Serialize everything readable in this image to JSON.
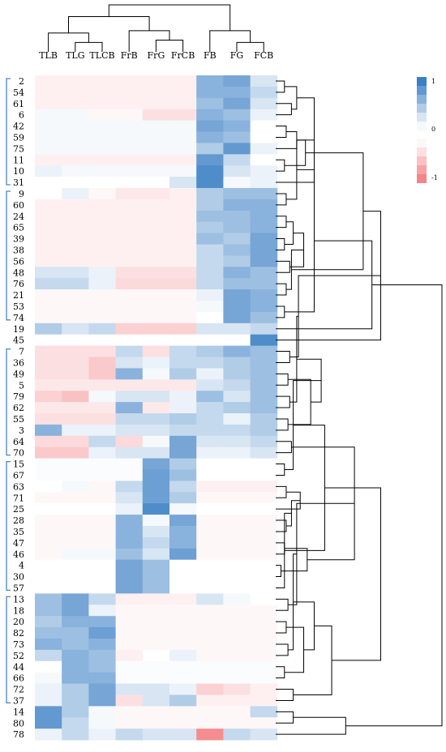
{
  "chart_data": {
    "type": "heatmap",
    "title": "",
    "columns": [
      "TLB",
      "TLG",
      "TLCB",
      "FrB",
      "FrG",
      "FrCB",
      "FB",
      "FG",
      "FCB"
    ],
    "rows": [
      "2",
      "54",
      "61",
      "6",
      "42",
      "59",
      "75",
      "11",
      "10",
      "31",
      "9",
      "60",
      "24",
      "65",
      "39",
      "38",
      "56",
      "48",
      "76",
      "21",
      "53",
      "74",
      "19",
      "45",
      "7",
      "36",
      "49",
      "5",
      "79",
      "62",
      "55",
      "3",
      "64",
      "70",
      "15",
      "67",
      "63",
      "71",
      "25",
      "28",
      "35",
      "47",
      "46",
      "4",
      "30",
      "57",
      "13",
      "18",
      "20",
      "82",
      "73",
      "52",
      "44",
      "66",
      "72",
      "37",
      "14",
      "80",
      "78"
    ],
    "values": [
      [
        -0.1,
        -0.1,
        -0.1,
        -0.1,
        -0.1,
        -0.1,
        0.6,
        0.7,
        0.2
      ],
      [
        -0.1,
        -0.1,
        -0.1,
        -0.1,
        -0.1,
        -0.1,
        0.6,
        0.6,
        0.3
      ],
      [
        -0.1,
        -0.1,
        -0.1,
        -0.1,
        -0.1,
        -0.1,
        0.5,
        0.7,
        0.2
      ],
      [
        0.05,
        0.05,
        -0.05,
        -0.05,
        -0.2,
        -0.2,
        0.6,
        0.5,
        0.1
      ],
      [
        0.05,
        0.05,
        0.05,
        0.05,
        0.05,
        0.05,
        0.7,
        0.6,
        0
      ],
      [
        0.05,
        0.05,
        0.05,
        0.05,
        0.05,
        0.05,
        0.6,
        0.5,
        0
      ],
      [
        0.05,
        0.05,
        0.05,
        0.05,
        0.05,
        0.05,
        0.4,
        0.8,
        0.1
      ],
      [
        -0.1,
        -0.1,
        -0.1,
        -0.1,
        -0.1,
        -0.1,
        0.8,
        0.3,
        0
      ],
      [
        0.1,
        0.05,
        0.05,
        0.05,
        0.05,
        0.05,
        0.9,
        0.2,
        0.1
      ],
      [
        0,
        0,
        0,
        0,
        0,
        0.2,
        0.9,
        0.05,
        0.1
      ],
      [
        0,
        0.1,
        -0.05,
        -0.15,
        -0.15,
        -0.1,
        0.4,
        0.5,
        0.5
      ],
      [
        -0.1,
        -0.1,
        -0.1,
        -0.1,
        -0.1,
        -0.1,
        0.4,
        0.6,
        0.6
      ],
      [
        -0.1,
        -0.1,
        -0.1,
        -0.1,
        -0.1,
        -0.1,
        0.5,
        0.5,
        0.6
      ],
      [
        -0.1,
        -0.1,
        -0.1,
        -0.1,
        -0.1,
        -0.1,
        0.4,
        0.5,
        0.6
      ],
      [
        -0.1,
        -0.1,
        -0.1,
        -0.1,
        -0.1,
        -0.1,
        0.5,
        0.4,
        0.7
      ],
      [
        -0.1,
        -0.1,
        -0.1,
        -0.1,
        -0.1,
        -0.1,
        0.3,
        0.5,
        0.7
      ],
      [
        -0.1,
        -0.1,
        -0.1,
        -0.1,
        -0.1,
        -0.1,
        0.3,
        0.4,
        0.7
      ],
      [
        0.2,
        0.2,
        0.1,
        -0.2,
        -0.2,
        -0.2,
        0.3,
        0.6,
        0.5
      ],
      [
        0.3,
        0.3,
        0.1,
        -0.25,
        -0.25,
        -0.25,
        0.3,
        0.5,
        0.5
      ],
      [
        -0.05,
        -0.05,
        -0.05,
        -0.05,
        -0.05,
        -0.05,
        0.1,
        0.7,
        0.6
      ],
      [
        -0.05,
        -0.05,
        -0.05,
        -0.05,
        -0.05,
        -0.05,
        0.05,
        0.7,
        0.6
      ],
      [
        -0.05,
        -0.05,
        -0.05,
        -0.05,
        -0.05,
        -0.05,
        0,
        0.7,
        0.5
      ],
      [
        0.4,
        0.2,
        0.3,
        -0.3,
        -0.3,
        -0.3,
        0.2,
        0.2,
        0.3
      ],
      [
        0,
        0,
        0,
        0,
        0,
        0,
        0,
        0,
        0.9
      ],
      [
        -0.2,
        -0.2,
        -0.2,
        0.3,
        -0.2,
        0.3,
        0.4,
        0.6,
        0.5
      ],
      [
        -0.2,
        -0.2,
        -0.35,
        0.2,
        0.1,
        0.3,
        0.3,
        0.4,
        0.5
      ],
      [
        -0.2,
        -0.2,
        -0.35,
        0.6,
        0.05,
        0.4,
        0.1,
        0.4,
        0.5
      ],
      [
        -0.15,
        -0.15,
        -0.15,
        -0.15,
        -0.15,
        -0.15,
        0.2,
        0.3,
        0.5
      ],
      [
        -0.3,
        -0.4,
        0.05,
        0.2,
        0.2,
        0.1,
        0.5,
        0.2,
        0.5
      ],
      [
        -0.15,
        -0.15,
        -0.15,
        0.6,
        -0.15,
        0.1,
        0.3,
        0.4,
        0.5
      ],
      [
        -0.2,
        -0.2,
        -0.2,
        0.3,
        0.3,
        0.4,
        0.3,
        0.1,
        0.4
      ],
      [
        0.6,
        0.1,
        0.1,
        0.2,
        0.2,
        0.3,
        0.3,
        0.3,
        0.4
      ],
      [
        -0.25,
        -0.25,
        0.3,
        -0.25,
        0.05,
        0.7,
        0.2,
        0.2,
        0.3
      ],
      [
        -0.35,
        -0.35,
        0.1,
        0.2,
        0.2,
        0.7,
        0.1,
        0.1,
        0.2
      ],
      [
        0.02,
        0.02,
        0.02,
        0.02,
        0.7,
        0.4,
        0,
        0,
        0
      ],
      [
        0.02,
        0.02,
        0.02,
        0.02,
        0.75,
        0.5,
        0,
        0,
        0
      ],
      [
        0,
        0.05,
        -0.05,
        0.3,
        0.75,
        0.3,
        -0.1,
        -0.1,
        -0.1
      ],
      [
        -0.05,
        -0.05,
        -0.05,
        0.2,
        0.75,
        0.4,
        -0.05,
        -0.05,
        -0.05
      ],
      [
        0,
        0,
        0,
        0.1,
        0.9,
        0.05,
        0,
        0,
        0
      ],
      [
        -0.05,
        -0.05,
        -0.05,
        0.6,
        0.05,
        0.7,
        -0.05,
        -0.05,
        -0.05
      ],
      [
        -0.05,
        -0.05,
        -0.05,
        0.6,
        0.2,
        0.6,
        -0.05,
        -0.05,
        -0.05
      ],
      [
        -0.05,
        -0.05,
        -0.05,
        0.6,
        0.3,
        0.6,
        -0.05,
        -0.05,
        -0.05
      ],
      [
        -0.05,
        0.05,
        0.05,
        0.5,
        0.2,
        0.75,
        -0.05,
        -0.05,
        -0.05
      ],
      [
        0,
        0,
        0,
        0.7,
        0.5,
        0,
        0,
        0,
        0
      ],
      [
        0,
        0,
        0,
        0.7,
        0.5,
        0,
        0,
        0,
        0
      ],
      [
        0,
        0,
        0,
        0.7,
        0.5,
        0,
        0,
        0,
        0
      ],
      [
        0.5,
        0.7,
        0.3,
        -0.1,
        -0.1,
        -0.1,
        0.2,
        0.05,
        0
      ],
      [
        0.5,
        0.7,
        0.1,
        -0.05,
        -0.05,
        -0.05,
        -0.05,
        -0.05,
        -0.05
      ],
      [
        0.4,
        0.6,
        0.6,
        -0.05,
        -0.05,
        -0.05,
        -0.05,
        -0.05,
        -0.05
      ],
      [
        0.5,
        0.5,
        0.75,
        -0.05,
        -0.05,
        -0.05,
        -0.05,
        -0.05,
        -0.05
      ],
      [
        0.6,
        0.5,
        0.6,
        -0.05,
        -0.05,
        -0.05,
        -0.05,
        -0.05,
        -0.05
      ],
      [
        0.3,
        0.6,
        0.5,
        -0.1,
        0,
        0.1,
        -0.05,
        -0.05,
        -0.05
      ],
      [
        0,
        0.6,
        0.5,
        0.02,
        0.02,
        0.02,
        0.02,
        0.02,
        0.02
      ],
      [
        0.05,
        0.6,
        0.6,
        0.02,
        0.02,
        0.02,
        0.02,
        0.02,
        0.02
      ],
      [
        0.1,
        0.4,
        0.7,
        0.2,
        0.2,
        0.1,
        -0.3,
        -0.2,
        -0.1
      ],
      [
        0.1,
        0.4,
        0.7,
        -0.2,
        0.2,
        0.4,
        -0.1,
        -0.1,
        -0.1
      ],
      [
        0.8,
        0.4,
        0.05,
        -0.05,
        -0.05,
        -0.05,
        -0.05,
        -0.05,
        0.3
      ],
      [
        0.8,
        0.3,
        0.05,
        -0.05,
        -0.05,
        -0.05,
        -0.05,
        -0.05,
        -0.05
      ],
      [
        0.1,
        0.3,
        0.1,
        0.3,
        0.2,
        0.2,
        -0.75,
        0.3,
        0.2
      ]
    ],
    "clusters": [
      [
        0,
        9
      ],
      [
        10,
        21
      ],
      [
        24,
        33
      ],
      [
        34,
        45
      ],
      [
        46,
        55
      ]
    ],
    "color_scale": {
      "min": -1,
      "max": 1,
      "ticks": [
        "1",
        "0",
        "-1"
      ],
      "positive_color": "#3b7fc4",
      "negative_color": "#f2656a",
      "neutral_color": "#ffffff"
    },
    "row_dendrogram": {
      "x0": [
        0,
        1,
        3,
        5,
        2,
        4,
        7,
        6,
        8,
        10,
        12,
        19,
        11,
        14,
        13,
        18,
        15,
        16,
        17,
        20,
        21,
        22,
        23,
        24,
        25,
        27,
        26,
        28,
        29,
        30,
        31,
        32,
        33,
        34,
        35,
        36,
        37,
        38,
        39,
        40,
        41,
        42,
        43,
        44,
        45,
        46,
        47,
        48,
        49,
        50,
        51,
        52,
        53,
        54,
        55,
        56,
        57,
        58
      ],
      "merges": [
        [
          0,
          1,
          0.05
        ],
        [
          2,
          3,
          0.09
        ],
        [
          4,
          5,
          0.06
        ],
        [
          7,
          8,
          0.05
        ],
        [
          6,
          61,
          0.12
        ],
        [
          59,
          60,
          0.12
        ],
        [
          62,
          63,
          0.17
        ],
        [
          64,
          9,
          0.22
        ],
        [
          10,
          11,
          0.06
        ],
        [
          12,
          13,
          0.06
        ],
        [
          14,
          15,
          0.05
        ],
        [
          16,
          17,
          0.08
        ],
        [
          68,
          69,
          0.1
        ],
        [
          66,
          67,
          0.12
        ],
        [
          71,
          70,
          0.16
        ],
        [
          18,
          19,
          0.06
        ],
        [
          20,
          21,
          0.05
        ],
        [
          73,
          74,
          0.09
        ],
        [
          72,
          75,
          0.22
        ],
        [
          65,
          76,
          0.5
        ],
        [
          77,
          22,
          0.55
        ],
        [
          78,
          23,
          0.6
        ],
        [
          24,
          25,
          0.08
        ],
        [
          26,
          27,
          0.07
        ],
        [
          80,
          81,
          0.13
        ],
        [
          28,
          29,
          0.08
        ],
        [
          30,
          31,
          0.07
        ],
        [
          83,
          84,
          0.12
        ],
        [
          82,
          85,
          0.2
        ],
        [
          32,
          33,
          0.09
        ],
        [
          86,
          87,
          0.26
        ],
        [
          34,
          35,
          0.05
        ],
        [
          36,
          37,
          0.06
        ],
        [
          89,
          90,
          0.1
        ],
        [
          91,
          38,
          0.14
        ],
        [
          39,
          40,
          0.06
        ],
        [
          41,
          42,
          0.05
        ],
        [
          93,
          94,
          0.09
        ],
        [
          43,
          44,
          0.03
        ],
        [
          96,
          45,
          0.05
        ],
        [
          95,
          97,
          0.18
        ],
        [
          92,
          98,
          0.28
        ],
        [
          88,
          99,
          0.45
        ],
        [
          46,
          47,
          0.07
        ],
        [
          48,
          49,
          0.06
        ],
        [
          101,
          102,
          0.12
        ],
        [
          50,
          51,
          0.07
        ],
        [
          52,
          53,
          0.05
        ],
        [
          104,
          105,
          0.1
        ],
        [
          103,
          106,
          0.16
        ],
        [
          54,
          55,
          0.1
        ],
        [
          107,
          108,
          0.22
        ],
        [
          56,
          57,
          0.1
        ],
        [
          109,
          110,
          0.32
        ],
        [
          111,
          58,
          0.4
        ],
        [
          100,
          112,
          0.6
        ],
        [
          79,
          113,
          0.95
        ]
      ]
    },
    "column_dendrogram": {
      "merges": [
        [
          1,
          2,
          0.2
        ],
        [
          0,
          9,
          0.4
        ],
        [
          4,
          5,
          0.25
        ],
        [
          3,
          11,
          0.45
        ],
        [
          10,
          12,
          0.75
        ],
        [
          7,
          8,
          0.2
        ],
        [
          6,
          14,
          0.45
        ],
        [
          13,
          15,
          1.0
        ]
      ]
    }
  }
}
